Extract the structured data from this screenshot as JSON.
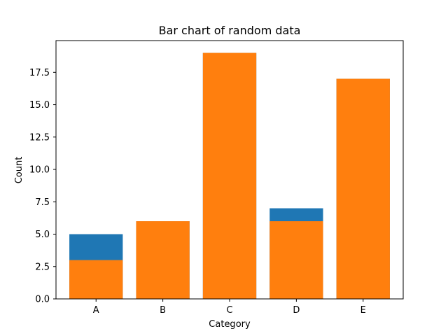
{
  "chart_data": {
    "type": "bar",
    "title": "Bar chart of random data",
    "xlabel": "Category",
    "ylabel": "Count",
    "categories": [
      "A",
      "B",
      "C",
      "D",
      "E"
    ],
    "series": [
      {
        "values": [
          5,
          6,
          19,
          7,
          17
        ],
        "color": "#1f77b4"
      },
      {
        "values": [
          3,
          6,
          19,
          6,
          17
        ],
        "color": "#ff7f0e"
      }
    ],
    "ylim": [
      0,
      19.95
    ],
    "yticks": [
      0,
      2.5,
      5,
      7.5,
      10,
      12.5,
      15,
      17.5
    ],
    "ytick_labels": [
      "0.0",
      "2.5",
      "5.0",
      "7.5",
      "10.0",
      "12.5",
      "15.0",
      "17.5"
    ],
    "overlay": true,
    "grid": false,
    "legend": false
  }
}
